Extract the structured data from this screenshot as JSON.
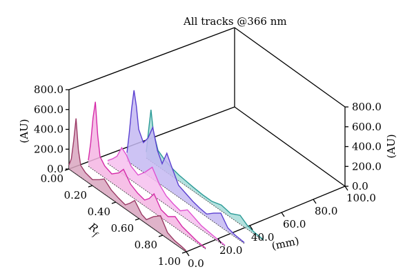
{
  "chart_data": {
    "type": "line",
    "title": "All tracks @366 nm",
    "z_axis": {
      "label": "(AU)",
      "range": [
        0.0,
        800.0
      ],
      "ticks": [
        "0.0",
        "200.0",
        "400.0",
        "600.0",
        "800.0"
      ]
    },
    "rf_axis": {
      "label": "Rf",
      "label_main": "R",
      "label_sub": "f",
      "range": [
        0.0,
        1.0
      ],
      "ticks": [
        "0.00",
        "0.20",
        "0.40",
        "0.60",
        "0.80",
        "1.00"
      ]
    },
    "mm_axis": {
      "label": "(mm)",
      "range": [
        0.0,
        100.0
      ],
      "ticks": [
        "0.0",
        "20.0",
        "40.0",
        "60.0",
        "80.0",
        "100.0"
      ]
    },
    "series": [
      {
        "color": "#9b3a66",
        "fill": "#d9a6c0",
        "track_mm": 0,
        "rf": [
          0.0,
          0.02,
          0.04,
          0.06,
          0.08,
          0.1,
          0.14,
          0.2,
          0.26,
          0.3,
          0.36,
          0.42,
          0.48,
          0.52,
          0.56,
          0.62,
          0.66,
          0.72,
          0.78,
          0.84,
          0.9,
          0.96,
          1.0
        ],
        "au": [
          40,
          120,
          320,
          560,
          260,
          120,
          80,
          60,
          110,
          150,
          90,
          60,
          40,
          90,
          150,
          60,
          40,
          120,
          180,
          60,
          30,
          20,
          10
        ]
      },
      {
        "color": "#d52aa8",
        "fill": "#f5b5e3",
        "track_mm": 14,
        "rf": [
          0.0,
          0.02,
          0.04,
          0.06,
          0.08,
          0.1,
          0.14,
          0.2,
          0.26,
          0.3,
          0.36,
          0.42,
          0.48,
          0.52,
          0.56,
          0.62,
          0.68,
          0.74,
          0.8,
          0.86,
          0.92,
          0.98,
          1.0
        ],
        "au": [
          60,
          250,
          520,
          700,
          380,
          180,
          120,
          90,
          150,
          220,
          120,
          80,
          60,
          110,
          190,
          80,
          60,
          110,
          60,
          40,
          20,
          10,
          10
        ]
      },
      {
        "color": "#e050d0",
        "fill": "#f6c0ef",
        "track_mm": 28,
        "rf": [
          0.0,
          0.04,
          0.08,
          0.12,
          0.16,
          0.2,
          0.26,
          0.32,
          0.38,
          0.44,
          0.5,
          0.56,
          0.62,
          0.68,
          0.74,
          0.8,
          0.86,
          0.92,
          1.0
        ],
        "au": [
          30,
          80,
          140,
          260,
          220,
          140,
          100,
          180,
          280,
          160,
          90,
          60,
          40,
          100,
          70,
          40,
          30,
          20,
          10
        ]
      },
      {
        "color": "#5a3fd0",
        "fill": "#c4b8f2",
        "track_mm": 42,
        "rf": [
          0.0,
          0.02,
          0.04,
          0.06,
          0.08,
          0.1,
          0.14,
          0.18,
          0.22,
          0.26,
          0.3,
          0.34,
          0.38,
          0.44,
          0.5,
          0.56,
          0.62,
          0.68,
          0.74,
          0.8,
          0.86,
          0.92,
          1.0
        ],
        "au": [
          80,
          300,
          560,
          760,
          620,
          400,
          300,
          380,
          520,
          320,
          220,
          360,
          260,
          120,
          90,
          60,
          40,
          30,
          90,
          140,
          40,
          20,
          10
        ]
      },
      {
        "color": "#2a9a96",
        "fill": "#a6dcd8",
        "track_mm": 56,
        "rf": [
          0.0,
          0.02,
          0.04,
          0.06,
          0.1,
          0.16,
          0.22,
          0.28,
          0.34,
          0.4,
          0.48,
          0.56,
          0.64,
          0.72,
          0.8,
          0.86,
          0.92,
          1.0
        ],
        "au": [
          60,
          300,
          520,
          320,
          160,
          110,
          80,
          60,
          50,
          40,
          30,
          30,
          60,
          40,
          90,
          40,
          20,
          10
        ]
      }
    ]
  }
}
